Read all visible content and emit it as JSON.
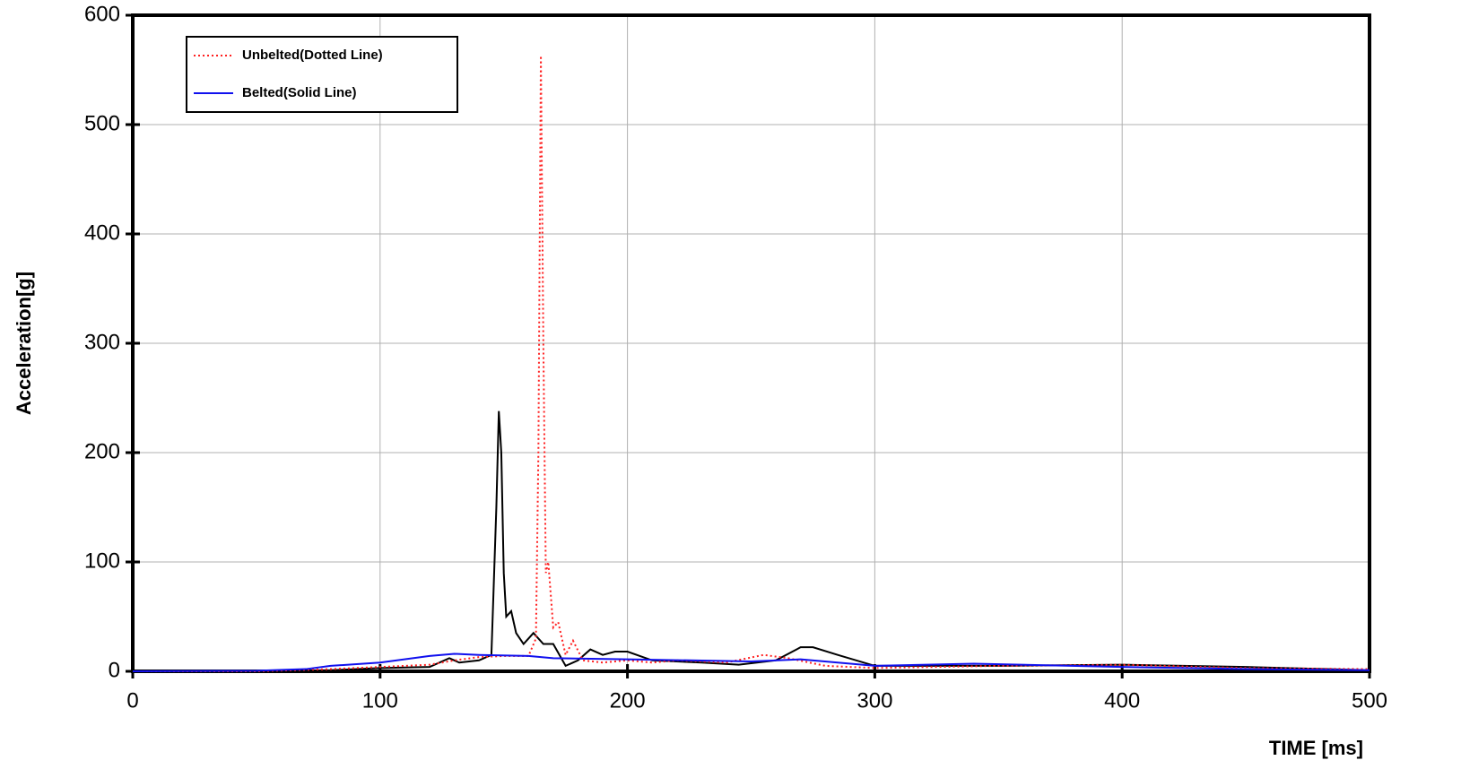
{
  "chart_data": {
    "type": "line",
    "y_label": "Acceleration[g]",
    "x_label": "TIME [ms]",
    "xlim": [
      0,
      500
    ],
    "xticks": [
      0,
      100,
      200,
      300,
      400,
      500
    ],
    "ylim": [
      0,
      600
    ],
    "yticks": [
      0,
      100,
      200,
      300,
      400,
      500,
      600
    ],
    "grid": true,
    "legend": "upper left",
    "series": [
      {
        "color": "#000000",
        "style": "solid",
        "x": [
          0,
          50,
          80,
          100,
          120,
          128,
          132,
          140,
          145,
          147,
          148,
          149,
          150,
          151,
          153,
          155,
          158,
          162,
          166,
          170,
          175,
          180,
          185,
          190,
          195,
          200,
          210,
          230,
          245,
          260,
          270,
          275,
          285,
          300,
          350,
          400,
          450,
          500
        ],
        "values": [
          0,
          0,
          1,
          3,
          4,
          12,
          8,
          10,
          15,
          150,
          238,
          200,
          90,
          50,
          55,
          35,
          25,
          35,
          25,
          25,
          5,
          10,
          20,
          15,
          18,
          18,
          10,
          8,
          6,
          10,
          22,
          22,
          15,
          5,
          5,
          6,
          4,
          1
        ]
      },
      {
        "name": "Unbelted(Dotted Line)",
        "color": "#ff2020",
        "style": "dotted",
        "x": [
          0,
          50,
          80,
          100,
          120,
          130,
          140,
          150,
          160,
          163,
          164,
          165,
          166,
          167,
          168,
          170,
          172,
          175,
          178,
          182,
          190,
          200,
          210,
          220,
          240,
          255,
          265,
          280,
          300,
          350,
          400,
          450,
          500
        ],
        "values": [
          0,
          0,
          2,
          4,
          6,
          10,
          13,
          14,
          14,
          30,
          200,
          563,
          300,
          90,
          100,
          40,
          45,
          15,
          28,
          10,
          8,
          10,
          8,
          10,
          8,
          15,
          12,
          5,
          3,
          5,
          6,
          3,
          2
        ]
      },
      {
        "name": "Belted(Solid Line)",
        "color": "#1010ee",
        "style": "solid",
        "x": [
          0,
          50,
          70,
          80,
          100,
          120,
          130,
          140,
          160,
          170,
          200,
          250,
          270,
          300,
          340,
          400,
          450,
          500
        ],
        "values": [
          0,
          0.5,
          2,
          5,
          8,
          14,
          16,
          15,
          14,
          12,
          11,
          9,
          11,
          5,
          7,
          4,
          2,
          1
        ]
      }
    ]
  }
}
